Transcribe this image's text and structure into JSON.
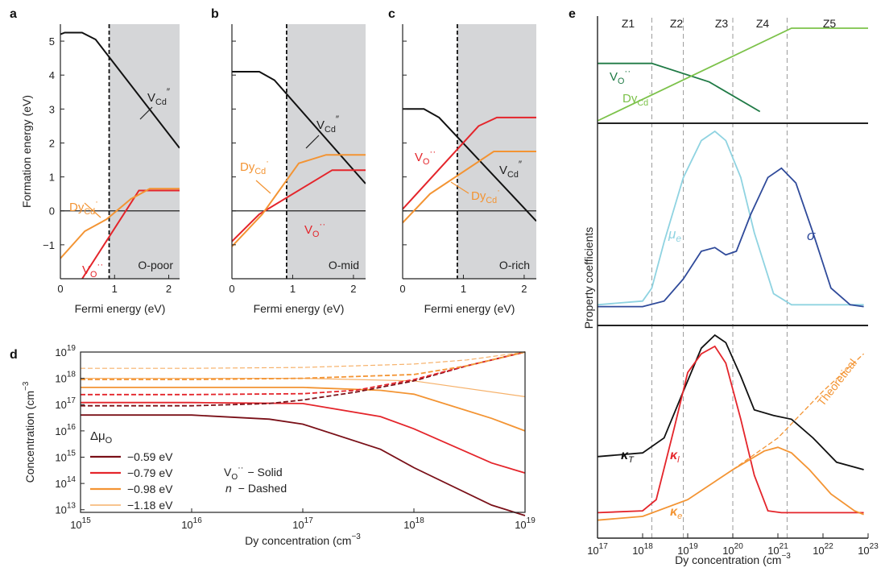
{
  "colors": {
    "black": "#111111",
    "red": "#e4252b",
    "orange": "#f39433",
    "darkred": "#7a1018",
    "lightorange": "#f6b16a",
    "darkgreen": "#1f7a45",
    "lightgreen": "#7cc24a",
    "cyan": "#8fd3e1",
    "navy": "#2f4a9a",
    "shade": "#d5d6d8"
  },
  "panel_letters": [
    "a",
    "b",
    "c",
    "d",
    "e"
  ],
  "chart_data": [
    {
      "panel": "a",
      "type": "line",
      "xlabel": "Fermi energy (eV)",
      "ylabel": "Formation energy (eV)",
      "xlim": [
        0,
        2.2
      ],
      "ylim": [
        -2,
        5.5
      ],
      "xticks": [
        "0",
        "1",
        "2"
      ],
      "yticks": [
        "−1",
        "0",
        "1",
        "2",
        "3",
        "4",
        "5"
      ],
      "shaded_from_x": 0.9,
      "region_label": "O-poor",
      "series": [
        {
          "name": "VCd″",
          "color": "black",
          "x": [
            0,
            0.08,
            0.4,
            0.65,
            2.2
          ],
          "y": [
            5.2,
            5.25,
            5.25,
            5.05,
            1.85
          ]
        },
        {
          "name": "VO··",
          "color": "red",
          "x": [
            0,
            1.45,
            1.7,
            2.2
          ],
          "y": [
            -3,
            0.6,
            0.6,
            0.6
          ]
        },
        {
          "name": "DyCd·",
          "color": "orange",
          "x": [
            0,
            0.45,
            0.85,
            1.3,
            1.65,
            2.2
          ],
          "y": [
            -1.4,
            -0.6,
            -0.25,
            0.35,
            0.65,
            0.65
          ]
        }
      ],
      "labels": {
        "vcd": "V",
        "vcd_sub": "Cd",
        "vcd_sup": "″",
        "vo": "V",
        "vo_sub": "O",
        "vo_sup": "··",
        "dy": "Dy",
        "dy_sub": "Cd",
        "dy_sup": "·"
      }
    },
    {
      "panel": "b",
      "type": "line",
      "xlabel": "Fermi energy (eV)",
      "xlim": [
        0,
        2.2
      ],
      "ylim": [
        -2,
        5.5
      ],
      "xticks": [
        "0",
        "1",
        "2"
      ],
      "shaded_from_x": 0.9,
      "region_label": "O-mid",
      "series": [
        {
          "name": "VCd″",
          "color": "black",
          "x": [
            0,
            0.45,
            0.7,
            2.2
          ],
          "y": [
            4.1,
            4.1,
            3.85,
            0.8
          ]
        },
        {
          "name": "VO··",
          "color": "red",
          "x": [
            0,
            0.45,
            1.65,
            2.2
          ],
          "y": [
            -0.9,
            -0.1,
            1.2,
            1.2
          ]
        },
        {
          "name": "DyCd·",
          "color": "orange",
          "x": [
            0,
            0.5,
            1.1,
            1.55,
            2.2
          ],
          "y": [
            -1.05,
            -0.1,
            1.4,
            1.65,
            1.65
          ]
        }
      ],
      "labels": {
        "vcd": "V",
        "vcd_sub": "Cd",
        "vcd_sup": "″",
        "vo": "V",
        "vo_sub": "O",
        "vo_sup": "··",
        "dy": "Dy",
        "dy_sub": "Cd",
        "dy_sup": "·"
      }
    },
    {
      "panel": "c",
      "type": "line",
      "xlabel": "Fermi energy (eV)",
      "xlim": [
        0,
        2.2
      ],
      "ylim": [
        -2,
        5.5
      ],
      "xticks": [
        "0",
        "1",
        "2"
      ],
      "shaded_from_x": 0.9,
      "region_label": "O-rich",
      "series": [
        {
          "name": "VCd″",
          "color": "black",
          "x": [
            0,
            0.35,
            0.6,
            2.2
          ],
          "y": [
            3.0,
            3.0,
            2.75,
            -0.3
          ]
        },
        {
          "name": "VO··",
          "color": "red",
          "x": [
            0,
            1.25,
            1.55,
            2.2
          ],
          "y": [
            0.05,
            2.5,
            2.75,
            2.75
          ]
        },
        {
          "name": "DyCd·",
          "color": "orange",
          "x": [
            0,
            0.45,
            1.5,
            2.2
          ],
          "y": [
            -0.35,
            0.5,
            1.75,
            1.75
          ]
        }
      ],
      "labels": {
        "vcd": "V",
        "vcd_sub": "Cd",
        "vcd_sup": "″",
        "vo": "V",
        "vo_sub": "O",
        "vo_sup": "··",
        "dy": "Dy",
        "dy_sub": "Cd",
        "dy_sup": "·"
      }
    },
    {
      "panel": "d",
      "type": "line",
      "xscale": "log",
      "yscale": "log",
      "xlabel": "Dy concentration (cm",
      "xlabel_sup": "−3",
      "ylabel": "Concentration (cm",
      "ylabel_sup": "−3",
      "xlim": [
        1000000000000000.0,
        1e+19
      ],
      "ylim": [
        3000000000000.0,
        1e+19
      ],
      "xticks": [
        {
          "base": "10",
          "exp": "15"
        },
        {
          "base": "10",
          "exp": "16"
        },
        {
          "base": "10",
          "exp": "17"
        },
        {
          "base": "10",
          "exp": "18"
        },
        {
          "base": "10",
          "exp": "19"
        }
      ],
      "yticks": [
        {
          "base": "10",
          "exp": "13"
        },
        {
          "base": "10",
          "exp": "14"
        },
        {
          "base": "10",
          "exp": "15"
        },
        {
          "base": "10",
          "exp": "16"
        },
        {
          "base": "10",
          "exp": "17"
        },
        {
          "base": "10",
          "exp": "18"
        },
        {
          "base": "10",
          "exp": "19"
        }
      ],
      "legend": {
        "title": "Δμ",
        "title_sub": "O",
        "entries": [
          {
            "label": "−0.59 eV",
            "color": "darkred"
          },
          {
            "label": "−0.79 eV",
            "color": "red"
          },
          {
            "label": "−0.98 eV",
            "color": "orange"
          },
          {
            "label": "−1.18 eV",
            "color": "lightorange"
          }
        ],
        "style_vo": "V",
        "style_vo_sub": "O",
        "style_vo_sup": "··",
        "style_vo_text": "− Solid",
        "style_n": "n",
        "style_n_text": "− Dashed"
      },
      "series": [
        {
          "name": "VO·· −0.59 eV",
          "color": "darkred",
          "style": "solid",
          "x": [
            1000000000000000.0,
            1e+16,
            5e+16,
            1e+17,
            5e+17,
            1e+18,
            5e+18,
            1e+19
          ],
          "y": [
            4e+16,
            4e+16,
            2.8e+16,
            1.8e+16,
            2000000000000000.0,
            400000000000000.0,
            15000000000000.0,
            6000000000000.0
          ]
        },
        {
          "name": "VO·· −0.79 eV",
          "color": "red",
          "style": "solid",
          "x": [
            1000000000000000.0,
            1e+16,
            1e+17,
            5e+17,
            1e+18,
            5e+18,
            1e+19
          ],
          "y": [
            1.2e+17,
            1.2e+17,
            1.1e+17,
            3.5e+16,
            1.2e+16,
            600000000000000.0,
            250000000000000.0
          ]
        },
        {
          "name": "VO·· −0.98 eV",
          "color": "orange",
          "style": "solid",
          "x": [
            1000000000000000.0,
            1e+16,
            1e+17,
            5e+17,
            1e+18,
            5e+18,
            1e+19
          ],
          "y": [
            4.5e+17,
            4.5e+17,
            4.5e+17,
            3.5e+17,
            2.5e+17,
            3e+16,
            1e+16
          ]
        },
        {
          "name": "VO·· −1.18 eV",
          "color": "lightorange",
          "style": "solid",
          "x": [
            1000000000000000.0,
            1e+16,
            1e+17,
            1e+18,
            1e+19
          ],
          "y": [
            1e+18,
            1e+18,
            1e+18,
            8e+17,
            2e+17
          ]
        },
        {
          "name": "n −0.59 eV",
          "color": "darkred",
          "style": "dashed",
          "x": [
            1000000000000000.0,
            1e+16,
            5e+16,
            1e+17,
            3e+17,
            1e+18,
            3e+18,
            1e+19
          ],
          "y": [
            9e+16,
            9e+16,
            1.1e+17,
            1.5e+17,
            3e+17,
            8e+17,
            3e+18,
            1e+19
          ]
        },
        {
          "name": "n −0.79 eV",
          "color": "red",
          "style": "dashed",
          "x": [
            1000000000000000.0,
            1e+16,
            1e+17,
            3e+17,
            1e+18,
            3e+18,
            1e+19
          ],
          "y": [
            2.4e+17,
            2.4e+17,
            2.6e+17,
            3.5e+17,
            9e+17,
            3e+18,
            1e+19
          ]
        },
        {
          "name": "n −0.98 eV",
          "color": "orange",
          "style": "dashed",
          "x": [
            1000000000000000.0,
            1e+16,
            1e+17,
            1e+18,
            3e+18,
            1e+19
          ],
          "y": [
            9e+17,
            9e+17,
            1e+18,
            1.4e+18,
            3e+18,
            1e+19
          ]
        },
        {
          "name": "n −1.18 eV",
          "color": "lightorange",
          "style": "dashed",
          "x": [
            1000000000000000.0,
            1e+16,
            1e+17,
            1e+18,
            3e+18,
            1e+19
          ],
          "y": [
            2.4e+18,
            2.4e+18,
            2.6e+18,
            3.5e+18,
            5e+18,
            1e+19
          ]
        }
      ]
    },
    {
      "panel": "e",
      "type": "line",
      "xscale": "log",
      "xlabel": "Dy concentration (cm",
      "xlabel_sup": "−3",
      "ylabel": "Property coefficients",
      "xlim": [
        1e+17,
        1e+23
      ],
      "xticks": [
        {
          "base": "10",
          "exp": "17"
        },
        {
          "base": "10",
          "exp": "18"
        },
        {
          "base": "10",
          "exp": "19"
        },
        {
          "base": "10",
          "exp": "20"
        },
        {
          "base": "10",
          "exp": "21"
        },
        {
          "base": "10",
          "exp": "22"
        },
        {
          "base": "10",
          "exp": "23"
        }
      ],
      "zones": [
        "Z1",
        "Z2",
        "Z3",
        "Z4",
        "Z5"
      ],
      "zone_boundaries_x": [
        1.6e+18,
        8e+18,
        1e+20,
        1.6e+21
      ],
      "top": {
        "vo": "V",
        "vo_sub": "O",
        "vo_sup": "··",
        "dy": "Dy",
        "dy_sub": "Cd",
        "dy_sup": "·",
        "series": [
          {
            "name": "VO··",
            "color": "darkgreen",
            "x": [
              1e+17,
              1.6e+18,
              3e+19,
              4e+20
            ],
            "y": [
              0.62,
              0.62,
              0.42,
              0.1
            ]
          },
          {
            "name": "DyCd·",
            "color": "lightgreen",
            "x": [
              1e+17,
              2e+21,
              1e+23
            ],
            "y": [
              0.0,
              1.0,
              1.0
            ]
          }
        ]
      },
      "middle": {
        "mu_label": "μ",
        "mu_sub": "e",
        "sigma_label": "σ",
        "series": [
          {
            "name": "μe",
            "color": "cyan",
            "x": [
              1e+17,
              1e+18,
              1.6e+18,
              3e+18,
              8e+18,
              2e+19,
              4e+19,
              7e+19,
              1.5e+20,
              3e+20,
              8e+20,
              2e+21,
              1e+22,
              8e+22
            ],
            "y": [
              0.06,
              0.08,
              0.15,
              0.4,
              0.75,
              0.95,
              1.0,
              0.95,
              0.75,
              0.45,
              0.12,
              0.06,
              0.06,
              0.06
            ]
          },
          {
            "name": "σ",
            "color": "navy",
            "x": [
              1e+17,
              1e+18,
              3e+18,
              8e+18,
              2e+19,
              4e+19,
              7e+19,
              1.2e+20,
              2.5e+20,
              6e+20,
              1.2e+21,
              2.5e+21,
              6e+21,
              1.5e+22,
              4e+22,
              8e+22
            ],
            "y": [
              0.05,
              0.05,
              0.08,
              0.2,
              0.35,
              0.37,
              0.33,
              0.35,
              0.55,
              0.75,
              0.8,
              0.72,
              0.45,
              0.15,
              0.06,
              0.05
            ]
          }
        ]
      },
      "bottom": {
        "kt_label": "κ",
        "kt_sub": "T",
        "kl_label": "κ",
        "kl_sub": "l",
        "ke_label": "κ",
        "ke_sub": "e",
        "theoretical": "Theoretical",
        "series": [
          {
            "name": "κT",
            "color": "black",
            "x": [
              1e+17,
              1e+18,
              3e+18,
              8e+18,
              2e+19,
              4e+19,
              7e+19,
              1.5e+20,
              3e+20,
              8e+20,
              2e+21,
              6e+21,
              2e+22,
              8e+22
            ],
            "y": [
              0.35,
              0.37,
              0.45,
              0.7,
              0.93,
              1.0,
              0.96,
              0.78,
              0.6,
              0.57,
              0.55,
              0.45,
              0.32,
              0.28
            ]
          },
          {
            "name": "κl",
            "color": "red",
            "x": [
              1e+17,
              1e+18,
              2e+18,
              5e+18,
              1e+19,
              2e+19,
              4e+19,
              7e+19,
              1.5e+20,
              3e+20,
              6e+20,
              1.2e+21,
              1e+22,
              8e+22
            ],
            "y": [
              0.05,
              0.06,
              0.12,
              0.5,
              0.8,
              0.9,
              0.94,
              0.85,
              0.55,
              0.25,
              0.06,
              0.05,
              0.05,
              0.05
            ]
          },
          {
            "name": "κe",
            "color": "orange",
            "x": [
              1e+17,
              1e+18,
              1e+19,
              1e+20,
              5e+20,
              1e+21,
              2e+21,
              5e+21,
              1.5e+22,
              5e+22,
              8e+22
            ],
            "y": [
              0.01,
              0.03,
              0.12,
              0.28,
              0.38,
              0.4,
              0.37,
              0.28,
              0.15,
              0.06,
              0.04
            ]
          },
          {
            "name": "Theoretical",
            "color": "orange",
            "style": "dashed",
            "x": [
              1e+20,
              1e+21,
              1e+22,
              8e+22
            ],
            "y": [
              0.28,
              0.45,
              0.7,
              0.9
            ]
          }
        ]
      }
    }
  ]
}
